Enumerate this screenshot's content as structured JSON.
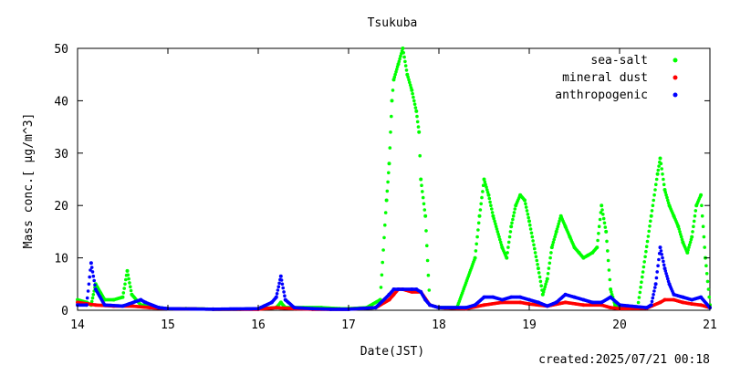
{
  "chart_data": {
    "type": "scatter",
    "title": "Tsukuba",
    "xlabel": "Date(JST)",
    "ylabel": "Mass conc.[ μg/m^3]",
    "footer": "created:2025/07/21 00:18",
    "xlim": [
      14,
      21
    ],
    "ylim": [
      0,
      50
    ],
    "x_ticks": [
      14,
      15,
      16,
      17,
      18,
      19,
      20,
      21
    ],
    "y_ticks": [
      0,
      10,
      20,
      30,
      40,
      50
    ],
    "legend_position": "top-right",
    "grid": false,
    "series": [
      {
        "name": "sea-salt",
        "color": "#00ff00",
        "x": [
          14.0,
          14.1,
          14.15,
          14.2,
          14.3,
          14.4,
          14.5,
          14.55,
          14.6,
          14.7,
          14.8,
          14.9,
          15.0,
          15.2,
          15.5,
          15.8,
          16.0,
          16.2,
          16.25,
          16.3,
          16.5,
          16.7,
          16.9,
          17.0,
          17.2,
          17.35,
          17.42,
          17.45,
          17.48,
          17.5,
          17.55,
          17.6,
          17.65,
          17.7,
          17.75,
          17.78,
          17.8,
          17.85,
          17.9,
          18.0,
          18.2,
          18.4,
          18.45,
          18.5,
          18.55,
          18.6,
          18.7,
          18.75,
          18.8,
          18.85,
          18.9,
          18.95,
          19.0,
          19.1,
          19.15,
          19.2,
          19.25,
          19.3,
          19.35,
          19.4,
          19.45,
          19.5,
          19.55,
          19.6,
          19.65,
          19.7,
          19.75,
          19.8,
          19.85,
          19.9,
          19.95,
          20.0,
          20.2,
          20.35,
          20.42,
          20.45,
          20.5,
          20.55,
          20.6,
          20.65,
          20.7,
          20.75,
          20.8,
          20.85,
          20.9,
          20.95,
          21.0
        ],
        "y": [
          2,
          1.5,
          1,
          5,
          2,
          2,
          2.5,
          7.5,
          3,
          1,
          1,
          0.5,
          0.3,
          0.3,
          0.2,
          0.2,
          0.3,
          0.5,
          1.5,
          0.5,
          0.5,
          0.5,
          0.3,
          0.3,
          0.5,
          2,
          21,
          28,
          40,
          44,
          47,
          50,
          45,
          42,
          38,
          34,
          25,
          18,
          1,
          0.5,
          0.5,
          10,
          18,
          25,
          22,
          18,
          12,
          10,
          16,
          20,
          22,
          21,
          17,
          8,
          3,
          6,
          12,
          15,
          18,
          16,
          14,
          12,
          11,
          10,
          10.5,
          11,
          12,
          20,
          15,
          4,
          1,
          0.5,
          0.5,
          18,
          26,
          29,
          23,
          20,
          18,
          16,
          13,
          11,
          14,
          20,
          22,
          10,
          1
        ],
        "values_note": ""
      },
      {
        "name": "mineral dust",
        "color": "#ff0000",
        "x": [
          14.0,
          14.2,
          14.4,
          14.6,
          14.8,
          15.0,
          15.5,
          16.0,
          16.2,
          16.4,
          16.6,
          16.8,
          17.0,
          17.3,
          17.45,
          17.5,
          17.55,
          17.6,
          17.7,
          17.8,
          17.9,
          18.0,
          18.3,
          18.5,
          18.7,
          18.9,
          19.0,
          19.2,
          19.4,
          19.6,
          19.8,
          19.9,
          20.0,
          20.3,
          20.45,
          20.5,
          20.6,
          20.7,
          20.8,
          20.9,
          21.0
        ],
        "y": [
          1.5,
          1,
          0.8,
          0.8,
          0.5,
          0.3,
          0.2,
          0.2,
          0.5,
          0.3,
          0.2,
          0.2,
          0.2,
          0.5,
          2,
          3,
          4,
          4,
          3.5,
          3.5,
          1,
          0.5,
          0.3,
          1,
          1.5,
          1.5,
          1.2,
          0.8,
          1.5,
          1,
          1,
          0.5,
          0.3,
          0.4,
          1.5,
          2,
          2,
          1.5,
          1.2,
          1,
          0.5
        ]
      },
      {
        "name": "anthropogenic",
        "color": "#0000ff",
        "x": [
          14.0,
          14.1,
          14.15,
          14.2,
          14.3,
          14.5,
          14.7,
          14.75,
          14.9,
          15.0,
          15.5,
          16.0,
          16.15,
          16.2,
          16.25,
          16.3,
          16.4,
          16.6,
          16.8,
          17.0,
          17.3,
          17.45,
          17.5,
          17.55,
          17.6,
          17.7,
          17.75,
          17.8,
          17.85,
          17.9,
          18.0,
          18.3,
          18.4,
          18.5,
          18.6,
          18.7,
          18.8,
          18.9,
          19.0,
          19.1,
          19.2,
          19.3,
          19.4,
          19.5,
          19.6,
          19.7,
          19.8,
          19.9,
          20.0,
          20.3,
          20.35,
          20.4,
          20.45,
          20.5,
          20.55,
          20.6,
          20.7,
          20.8,
          20.9,
          21.0
        ],
        "y": [
          1,
          1,
          9,
          4,
          1,
          0.8,
          2,
          1.5,
          0.5,
          0.3,
          0.2,
          0.3,
          1.5,
          2.5,
          6.5,
          2,
          0.5,
          0.3,
          0.2,
          0.2,
          0.5,
          3,
          4,
          4,
          4,
          4,
          4,
          3.5,
          2,
          1,
          0.5,
          0.5,
          1,
          2.5,
          2.5,
          2,
          2.5,
          2.5,
          2,
          1.5,
          0.8,
          1.5,
          3,
          2.5,
          2,
          1.5,
          1.5,
          2.5,
          1,
          0.5,
          1,
          5,
          12,
          8,
          5,
          3,
          2.5,
          2,
          2.5,
          0.5
        ]
      }
    ]
  }
}
